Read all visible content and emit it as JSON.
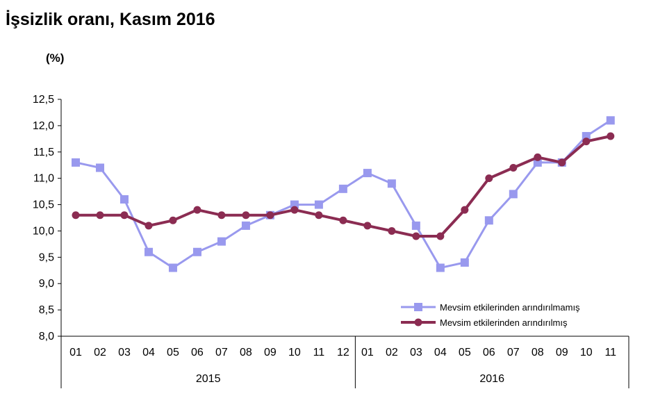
{
  "title": "İşsizlik oranı, Kasım 2016",
  "unit_label": "(%)",
  "chart_data": {
    "type": "line",
    "title": "İşsizlik oranı, Kasım 2016",
    "ylabel": "(%)",
    "ylim": [
      8.0,
      12.5
    ],
    "yticks": [
      "8,0",
      "8,5",
      "9,0",
      "9,5",
      "10,0",
      "10,5",
      "11,0",
      "11,5",
      "12,0",
      "12,5"
    ],
    "categories": [
      "01",
      "02",
      "03",
      "04",
      "05",
      "06",
      "07",
      "08",
      "09",
      "10",
      "11",
      "12",
      "01",
      "02",
      "03",
      "04",
      "05",
      "06",
      "07",
      "08",
      "09",
      "10",
      "11"
    ],
    "year_groups": [
      {
        "label": "2015",
        "count": 12
      },
      {
        "label": "2016",
        "count": 11
      }
    ],
    "grid": false,
    "legend_position": "bottom-right",
    "series": [
      {
        "name": "Mevsim etkilerinden arındırılmamış",
        "color": "#9999ee",
        "marker": "square",
        "values": [
          11.3,
          11.2,
          10.6,
          9.6,
          9.3,
          9.6,
          9.8,
          10.1,
          10.3,
          10.5,
          10.5,
          10.8,
          11.1,
          10.9,
          10.1,
          9.3,
          9.4,
          10.2,
          10.7,
          11.3,
          11.3,
          11.8,
          12.1
        ]
      },
      {
        "name": "Mevsim etkilerinden arındırılmış",
        "color": "#8b2c52",
        "marker": "circle",
        "values": [
          10.3,
          10.3,
          10.3,
          10.1,
          10.2,
          10.4,
          10.3,
          10.3,
          10.3,
          10.4,
          10.3,
          10.2,
          10.1,
          10.0,
          9.9,
          9.9,
          10.4,
          11.0,
          11.2,
          11.4,
          11.3,
          11.7,
          11.8
        ]
      }
    ]
  }
}
